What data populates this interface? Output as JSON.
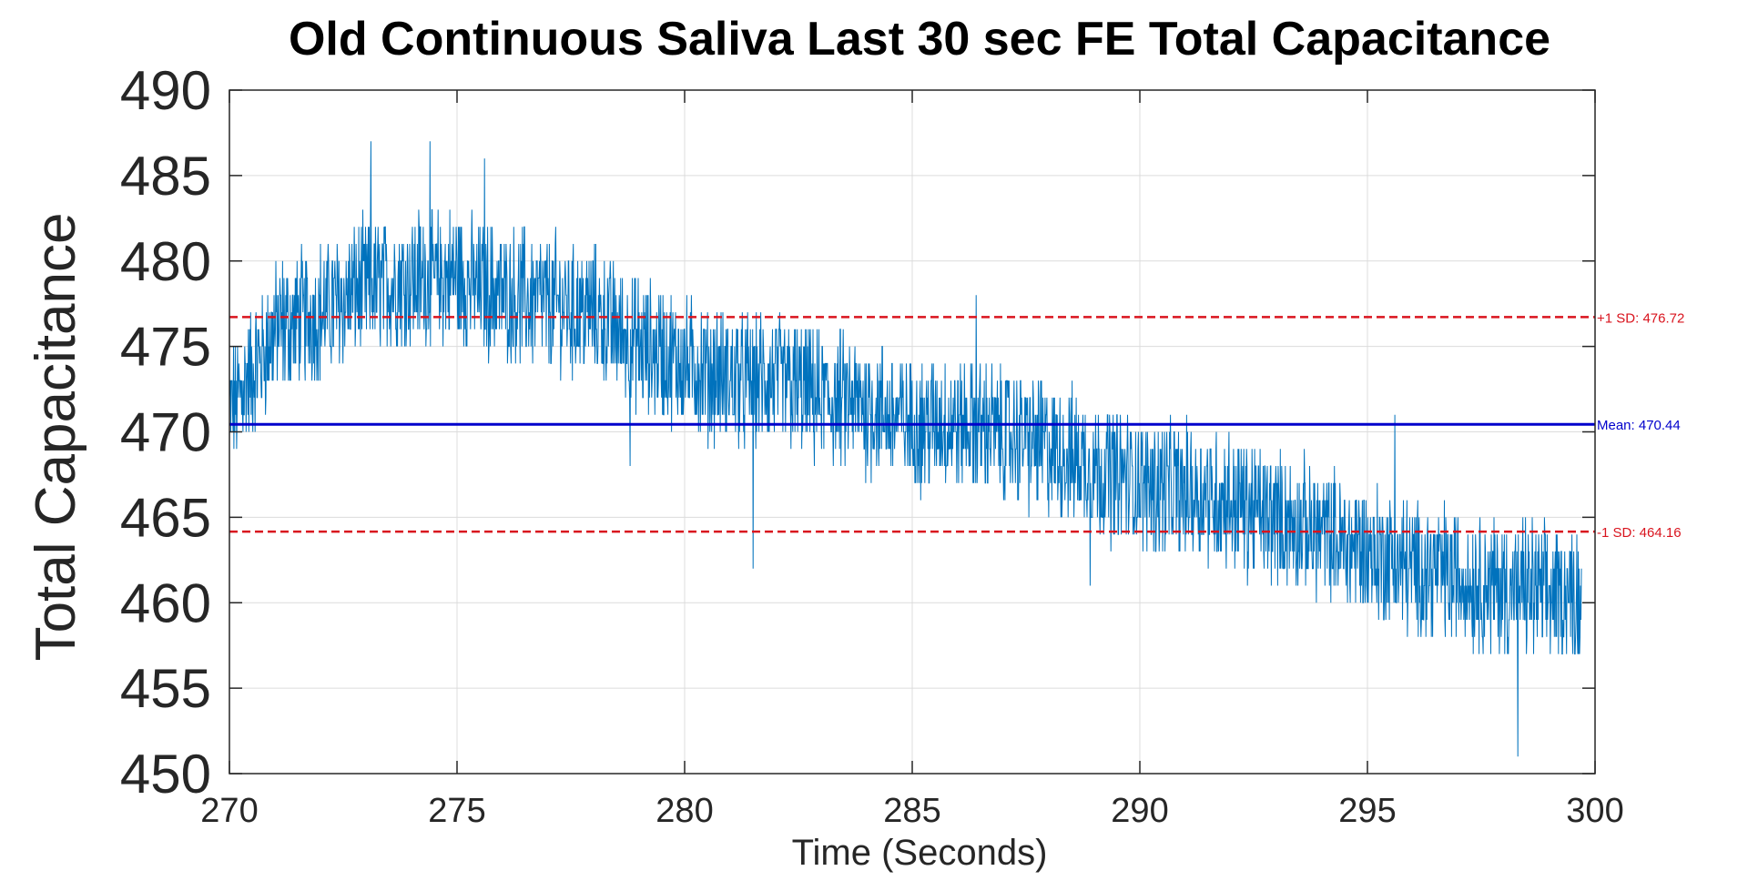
{
  "chart_data": {
    "type": "line",
    "title": "Old Continuous Saliva Last 30 sec FE Total Capacitance",
    "xlabel": "Time (Seconds)",
    "ylabel": "Total Capacitance",
    "xlim": [
      270,
      300
    ],
    "ylim": [
      450,
      490
    ],
    "xticks": [
      270,
      275,
      280,
      285,
      290,
      295,
      300
    ],
    "yticks": [
      450,
      455,
      460,
      465,
      470,
      475,
      480,
      485,
      490
    ],
    "grid": true,
    "series": [
      {
        "color": "#0072bd",
        "x": [
          270,
          271,
          272,
          273,
          274,
          275,
          276,
          277,
          278,
          279,
          280,
          281,
          282,
          283,
          284,
          285,
          286,
          287,
          288,
          289,
          290,
          291,
          292,
          293,
          294,
          295,
          296,
          297,
          298,
          299,
          299.7
        ],
        "y": [
          471,
          476,
          477,
          478.5,
          479,
          479,
          478,
          477.5,
          477,
          475,
          474,
          473,
          473,
          472,
          471.5,
          470.5,
          470.5,
          470,
          469,
          468,
          467,
          466.5,
          466,
          465,
          464,
          463,
          462,
          461.5,
          461,
          460.5,
          460.5
        ],
        "noise_band": 3.5,
        "spikes": [
          {
            "x": 273.1,
            "y": 487
          },
          {
            "x": 274.4,
            "y": 487
          },
          {
            "x": 275.6,
            "y": 486
          },
          {
            "x": 278.8,
            "y": 468
          },
          {
            "x": 281.5,
            "y": 462
          },
          {
            "x": 286.4,
            "y": 478
          },
          {
            "x": 288.9,
            "y": 461
          },
          {
            "x": 292.8,
            "y": 462
          },
          {
            "x": 295.6,
            "y": 471
          },
          {
            "x": 298.3,
            "y": 451
          }
        ]
      }
    ],
    "reference_lines": [
      {
        "label": "+1 SD: 476.72",
        "value": 476.72,
        "color": "#d9141e",
        "style": "dashed"
      },
      {
        "label": "Mean: 470.44",
        "value": 470.44,
        "color": "#0000cc",
        "style": "solid"
      },
      {
        "label": "-1 SD: 464.16",
        "value": 464.16,
        "color": "#d9141e",
        "style": "dashed"
      }
    ]
  }
}
